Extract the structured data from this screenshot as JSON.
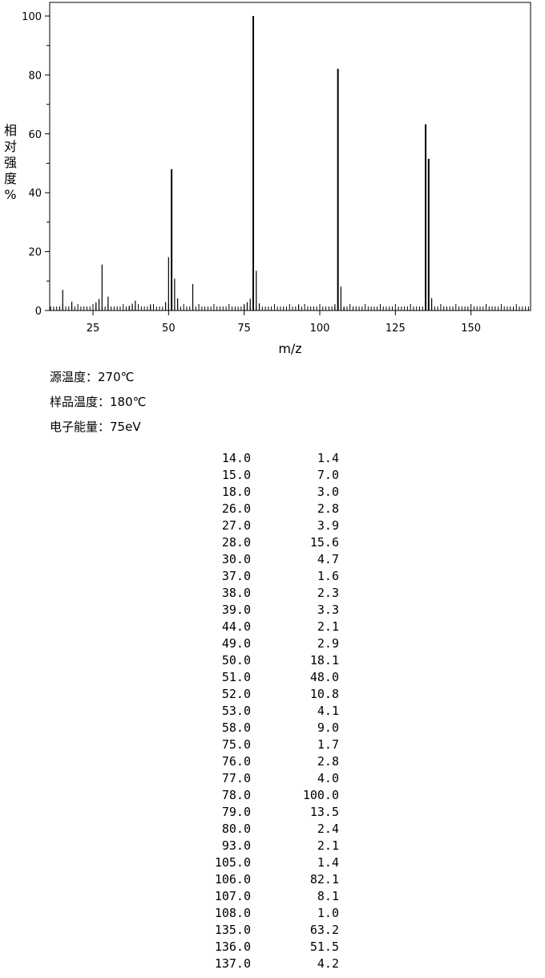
{
  "chart_data": {
    "type": "bar",
    "xlabel": "m/z",
    "ylabel": "相对强度 %",
    "xlim": [
      10,
      170
    ],
    "ylim": [
      0,
      100
    ],
    "x_ticks": [
      "25",
      "50",
      "75",
      "100",
      "125",
      "150"
    ],
    "y_ticks": [
      "0",
      "20",
      "40",
      "60",
      "80",
      "100"
    ],
    "grid": false,
    "x": [
      14,
      15,
      18,
      26,
      27,
      28,
      30,
      37,
      38,
      39,
      44,
      49,
      50,
      51,
      52,
      53,
      58,
      75,
      76,
      77,
      78,
      79,
      80,
      93,
      105,
      106,
      107,
      108,
      135,
      136,
      137
    ],
    "values": [
      1.4,
      7.0,
      3.0,
      2.8,
      3.9,
      15.6,
      4.7,
      1.6,
      2.3,
      3.3,
      2.1,
      2.9,
      18.1,
      48.0,
      10.8,
      4.1,
      9.0,
      1.7,
      2.8,
      4.0,
      100.0,
      13.5,
      2.4,
      2.1,
      1.4,
      82.1,
      8.1,
      1.0,
      63.2,
      51.5,
      4.2
    ]
  },
  "conditions": [
    {
      "label": "源温度：",
      "value": "270℃"
    },
    {
      "label": "样品温度：",
      "value": "180℃"
    },
    {
      "label": "电子能量：",
      "value": "75eV"
    }
  ],
  "peak_table": [
    {
      "mz": "14.0",
      "intensity": "1.4"
    },
    {
      "mz": "15.0",
      "intensity": "7.0"
    },
    {
      "mz": "18.0",
      "intensity": "3.0"
    },
    {
      "mz": "26.0",
      "intensity": "2.8"
    },
    {
      "mz": "27.0",
      "intensity": "3.9"
    },
    {
      "mz": "28.0",
      "intensity": "15.6"
    },
    {
      "mz": "30.0",
      "intensity": "4.7"
    },
    {
      "mz": "37.0",
      "intensity": "1.6"
    },
    {
      "mz": "38.0",
      "intensity": "2.3"
    },
    {
      "mz": "39.0",
      "intensity": "3.3"
    },
    {
      "mz": "44.0",
      "intensity": "2.1"
    },
    {
      "mz": "49.0",
      "intensity": "2.9"
    },
    {
      "mz": "50.0",
      "intensity": "18.1"
    },
    {
      "mz": "51.0",
      "intensity": "48.0"
    },
    {
      "mz": "52.0",
      "intensity": "10.8"
    },
    {
      "mz": "53.0",
      "intensity": "4.1"
    },
    {
      "mz": "58.0",
      "intensity": "9.0"
    },
    {
      "mz": "75.0",
      "intensity": "1.7"
    },
    {
      "mz": "76.0",
      "intensity": "2.8"
    },
    {
      "mz": "77.0",
      "intensity": "4.0"
    },
    {
      "mz": "78.0",
      "intensity": "100.0"
    },
    {
      "mz": "79.0",
      "intensity": "13.5"
    },
    {
      "mz": "80.0",
      "intensity": "2.4"
    },
    {
      "mz": "93.0",
      "intensity": "2.1"
    },
    {
      "mz": "105.0",
      "intensity": "1.4"
    },
    {
      "mz": "106.0",
      "intensity": "82.1"
    },
    {
      "mz": "107.0",
      "intensity": "8.1"
    },
    {
      "mz": "108.0",
      "intensity": "1.0"
    },
    {
      "mz": "135.0",
      "intensity": "63.2"
    },
    {
      "mz": "136.0",
      "intensity": "51.5"
    },
    {
      "mz": "137.0",
      "intensity": "4.2"
    }
  ]
}
